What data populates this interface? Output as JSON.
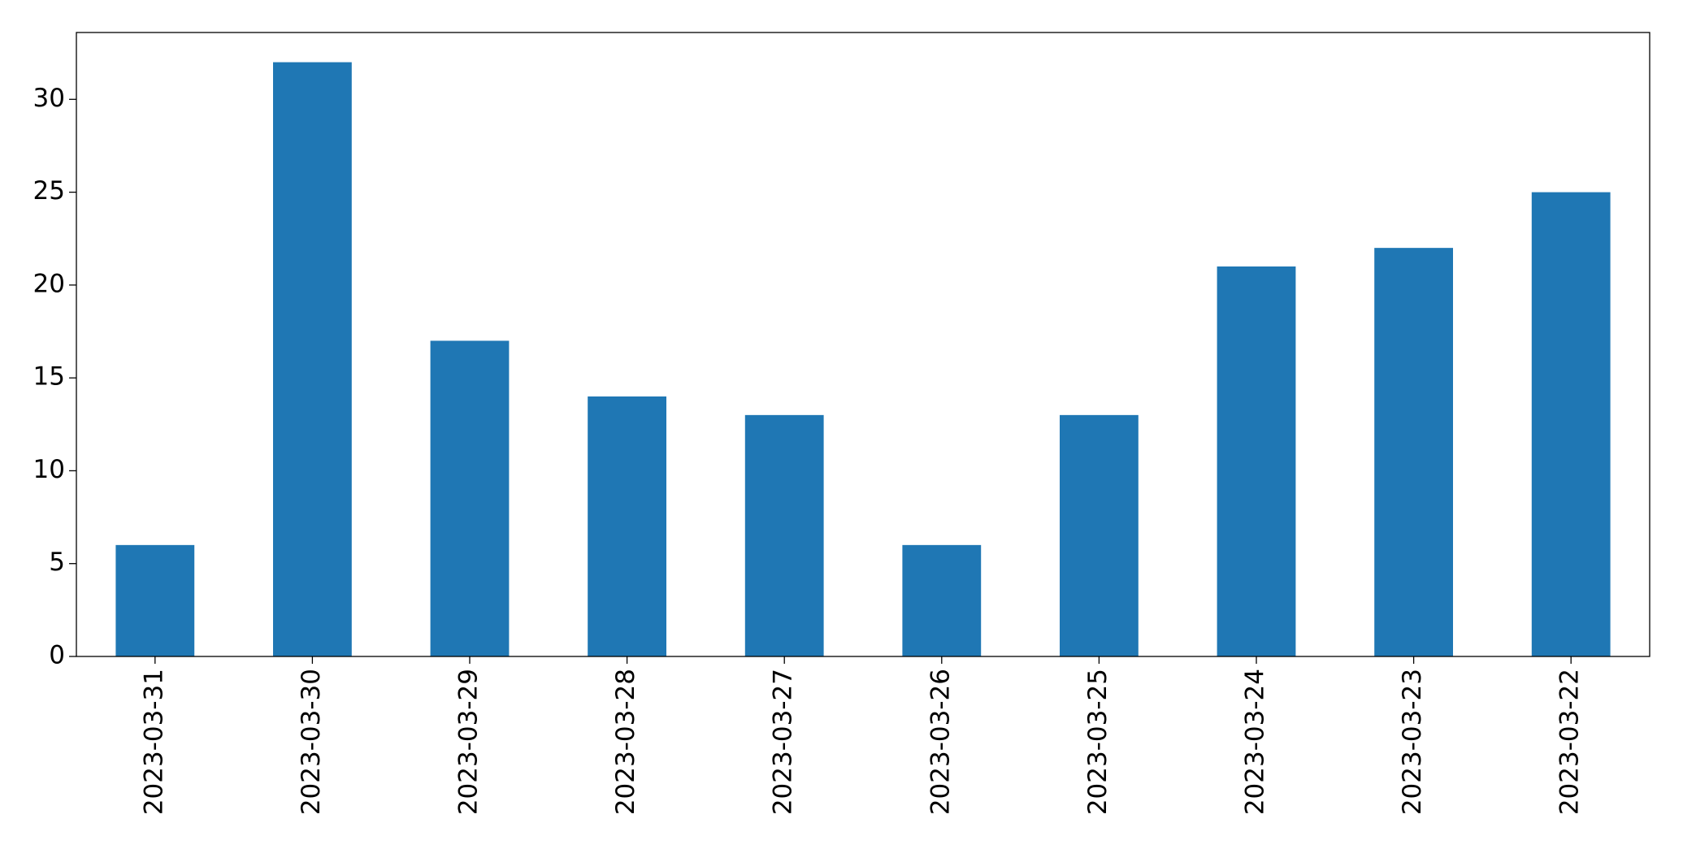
{
  "chart_data": {
    "type": "bar",
    "categories": [
      "2023-03-31",
      "2023-03-30",
      "2023-03-29",
      "2023-03-28",
      "2023-03-27",
      "2023-03-26",
      "2023-03-25",
      "2023-03-24",
      "2023-03-23",
      "2023-03-22"
    ],
    "values": [
      6,
      32,
      17,
      14,
      13,
      6,
      13,
      21,
      22,
      25
    ],
    "color": "#1f77b4",
    "ylim": [
      0,
      33.6
    ],
    "yticks": [
      0,
      5,
      10,
      15,
      20,
      25,
      30
    ],
    "grid": false
  }
}
